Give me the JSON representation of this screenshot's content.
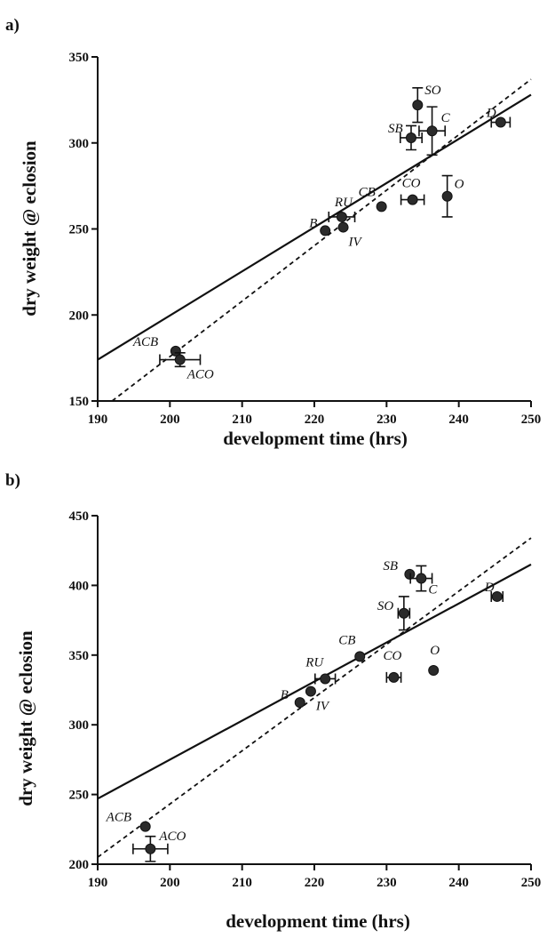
{
  "chart_data": [
    {
      "panel": "a)",
      "type": "scatter",
      "xlabel": "development time (hrs)",
      "ylabel": "dry weight @ eclosion",
      "xlim": [
        190,
        250
      ],
      "ylim": [
        150,
        350
      ],
      "xticks": [
        190,
        200,
        210,
        220,
        230,
        240,
        250
      ],
      "yticks": [
        150,
        200,
        250,
        300,
        350
      ],
      "grid": false,
      "points": [
        {
          "label": "ACB",
          "x": 200.8,
          "y": 179,
          "xerr": 0,
          "yerr": 0
        },
        {
          "label": "ACO",
          "x": 201.4,
          "y": 174,
          "xerr": 2.8,
          "yerr": 4
        },
        {
          "label": "B",
          "x": 221.5,
          "y": 249,
          "xerr": 0,
          "yerr": 0
        },
        {
          "label": "RU",
          "x": 223.8,
          "y": 257,
          "xerr": 1.8,
          "yerr": 0
        },
        {
          "label": "IV",
          "x": 224.0,
          "y": 251,
          "xerr": 0,
          "yerr": 0
        },
        {
          "label": "CB",
          "x": 229.3,
          "y": 263,
          "xerr": 0,
          "yerr": 0
        },
        {
          "label": "CO",
          "x": 233.6,
          "y": 267,
          "xerr": 1.6,
          "yerr": 0
        },
        {
          "label": "O",
          "x": 238.4,
          "y": 269,
          "xerr": 0,
          "yerr": 12
        },
        {
          "label": "SO",
          "x": 234.3,
          "y": 322,
          "xerr": 0,
          "yerr": 10
        },
        {
          "label": "SB",
          "x": 233.4,
          "y": 303,
          "xerr": 1.5,
          "yerr": 7
        },
        {
          "label": "C",
          "x": 236.3,
          "y": 307,
          "xerr": 1.8,
          "yerr": 14
        },
        {
          "label": "D",
          "x": 245.8,
          "y": 312,
          "xerr": 1.3,
          "yerr": 0
        }
      ],
      "lines": [
        {
          "style": "solid",
          "x": [
            190,
            250
          ],
          "y": [
            174,
            328
          ]
        },
        {
          "style": "dashed",
          "x": [
            192,
            250
          ],
          "y": [
            150,
            337
          ]
        }
      ]
    },
    {
      "panel": "b)",
      "type": "scatter",
      "xlabel": "development time (hrs)",
      "ylabel": "dry weight @ eclosion",
      "xlim": [
        190,
        250
      ],
      "ylim": [
        200,
        450
      ],
      "xticks": [
        190,
        200,
        210,
        220,
        230,
        240,
        250
      ],
      "yticks": [
        200,
        250,
        300,
        350,
        400,
        450
      ],
      "grid": false,
      "points": [
        {
          "label": "ACB",
          "x": 196.6,
          "y": 227,
          "xerr": 0,
          "yerr": 0
        },
        {
          "label": "ACO",
          "x": 197.3,
          "y": 211,
          "xerr": 2.4,
          "yerr": 9
        },
        {
          "label": "B",
          "x": 218.0,
          "y": 316,
          "xerr": 0,
          "yerr": 0
        },
        {
          "label": "IV",
          "x": 219.5,
          "y": 324,
          "xerr": 0,
          "yerr": 0
        },
        {
          "label": "RU",
          "x": 221.5,
          "y": 333,
          "xerr": 1.4,
          "yerr": 0
        },
        {
          "label": "CB",
          "x": 226.3,
          "y": 349,
          "xerr": 0,
          "yerr": 0
        },
        {
          "label": "CO",
          "x": 231.0,
          "y": 334,
          "xerr": 1.0,
          "yerr": 0
        },
        {
          "label": "O",
          "x": 236.5,
          "y": 339,
          "xerr": 0,
          "yerr": 0
        },
        {
          "label": "SO",
          "x": 232.4,
          "y": 380,
          "xerr": 0.8,
          "yerr": 12
        },
        {
          "label": "SB",
          "x": 233.2,
          "y": 408,
          "xerr": 0,
          "yerr": 0
        },
        {
          "label": "C",
          "x": 234.8,
          "y": 405,
          "xerr": 1.5,
          "yerr": 9
        },
        {
          "label": "D",
          "x": 245.3,
          "y": 392,
          "xerr": 0.8,
          "yerr": 0
        }
      ],
      "lines": [
        {
          "style": "solid",
          "x": [
            190,
            250
          ],
          "y": [
            247,
            415
          ]
        },
        {
          "style": "dashed",
          "x": [
            190,
            250
          ],
          "y": [
            205,
            434
          ]
        }
      ]
    }
  ]
}
